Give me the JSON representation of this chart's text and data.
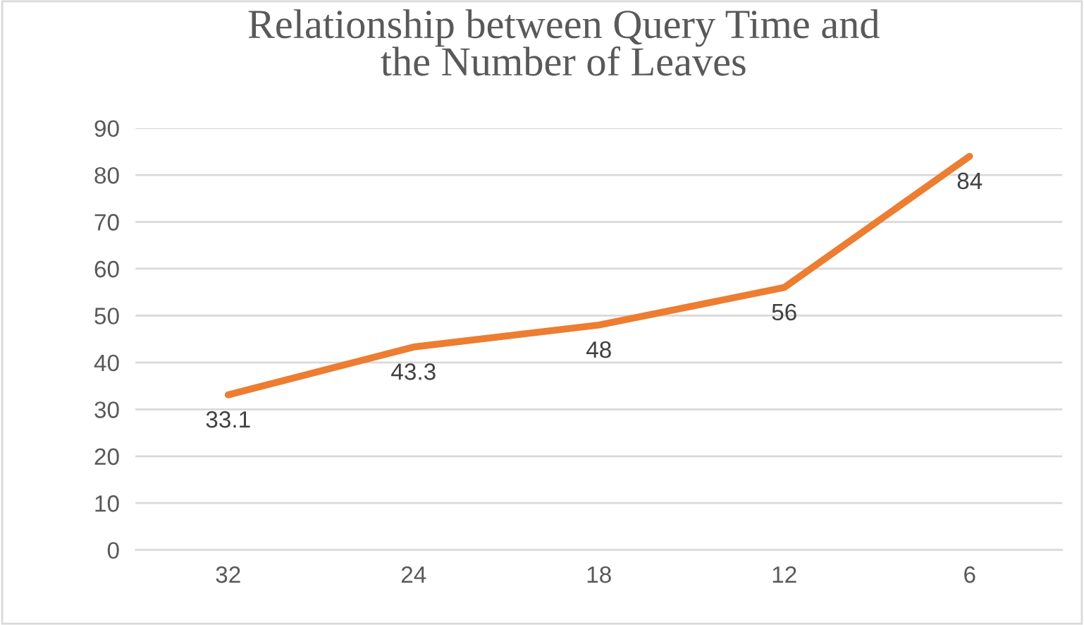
{
  "chart_data": {
    "type": "line",
    "title": "Relationship between Query Time and\nthe Number of Leaves",
    "categories": [
      "32",
      "24",
      "18",
      "12",
      "6"
    ],
    "series": [
      {
        "color": "#ed7d31",
        "values": [
          33.1,
          43.3,
          48,
          56,
          84
        ]
      }
    ],
    "ylim": [
      0,
      90
    ],
    "yticks": [
      0,
      10,
      20,
      30,
      40,
      50,
      60,
      70,
      80,
      90
    ],
    "grid": "y",
    "data_labels": true,
    "marker": "none",
    "line_style": "solid"
  }
}
